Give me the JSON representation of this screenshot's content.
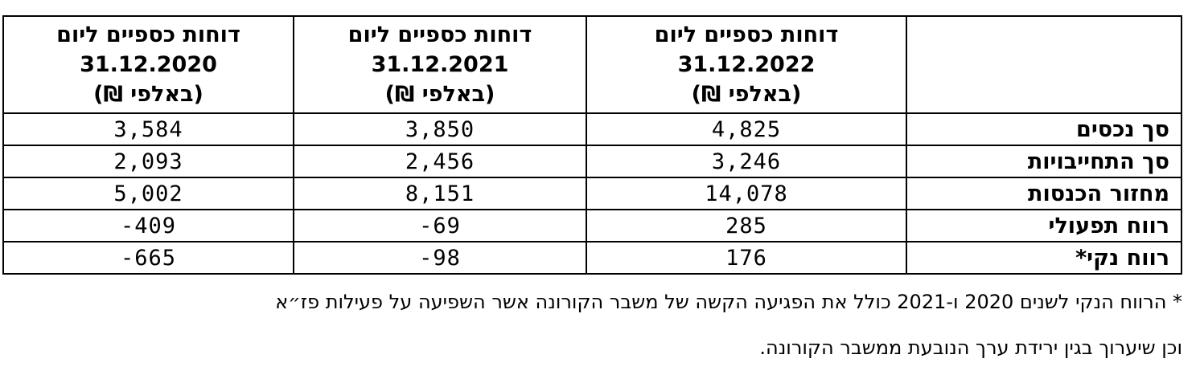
{
  "table": {
    "headers": [
      {
        "title": "",
        "date": "",
        "unit": ""
      },
      {
        "title": "דוחות כספיים ליום",
        "date": "31.12.2022",
        "unit": "(באלפי ₪)"
      },
      {
        "title": "דוחות כספיים ליום",
        "date": "31.12.2021",
        "unit": "(באלפי ₪)"
      },
      {
        "title": "דוחות כספיים ליום",
        "date": "31.12.2020",
        "unit": "(באלפי ₪)"
      }
    ],
    "rows": [
      {
        "label": "סך נכסים",
        "v2022": "4,825",
        "v2021": "3,850",
        "v2020": "3,584"
      },
      {
        "label": "סך התחייבויות",
        "v2022": "3,246",
        "v2021": "2,456",
        "v2020": "2,093"
      },
      {
        "label": "מחזור הכנסות",
        "v2022": "14,078",
        "v2021": "8,151",
        "v2020": "5,002"
      },
      {
        "label": "רווח תפעולי",
        "v2022": "285",
        "v2021": "-69",
        "v2020": "-409"
      },
      {
        "label": "רווח נקי*",
        "v2022": "176",
        "v2021": "-98",
        "v2020": "-665"
      }
    ]
  },
  "footnote": {
    "line1": "* הרווח הנקי לשנים 2020 ו-2021 כולל את הפגיעה הקשה של משבר הקורונה אשר השפיעה על פעילות פז״א",
    "line2": "וכן שיערוך בגין ירידת ערך הנובעת ממשבר הקורונה."
  }
}
